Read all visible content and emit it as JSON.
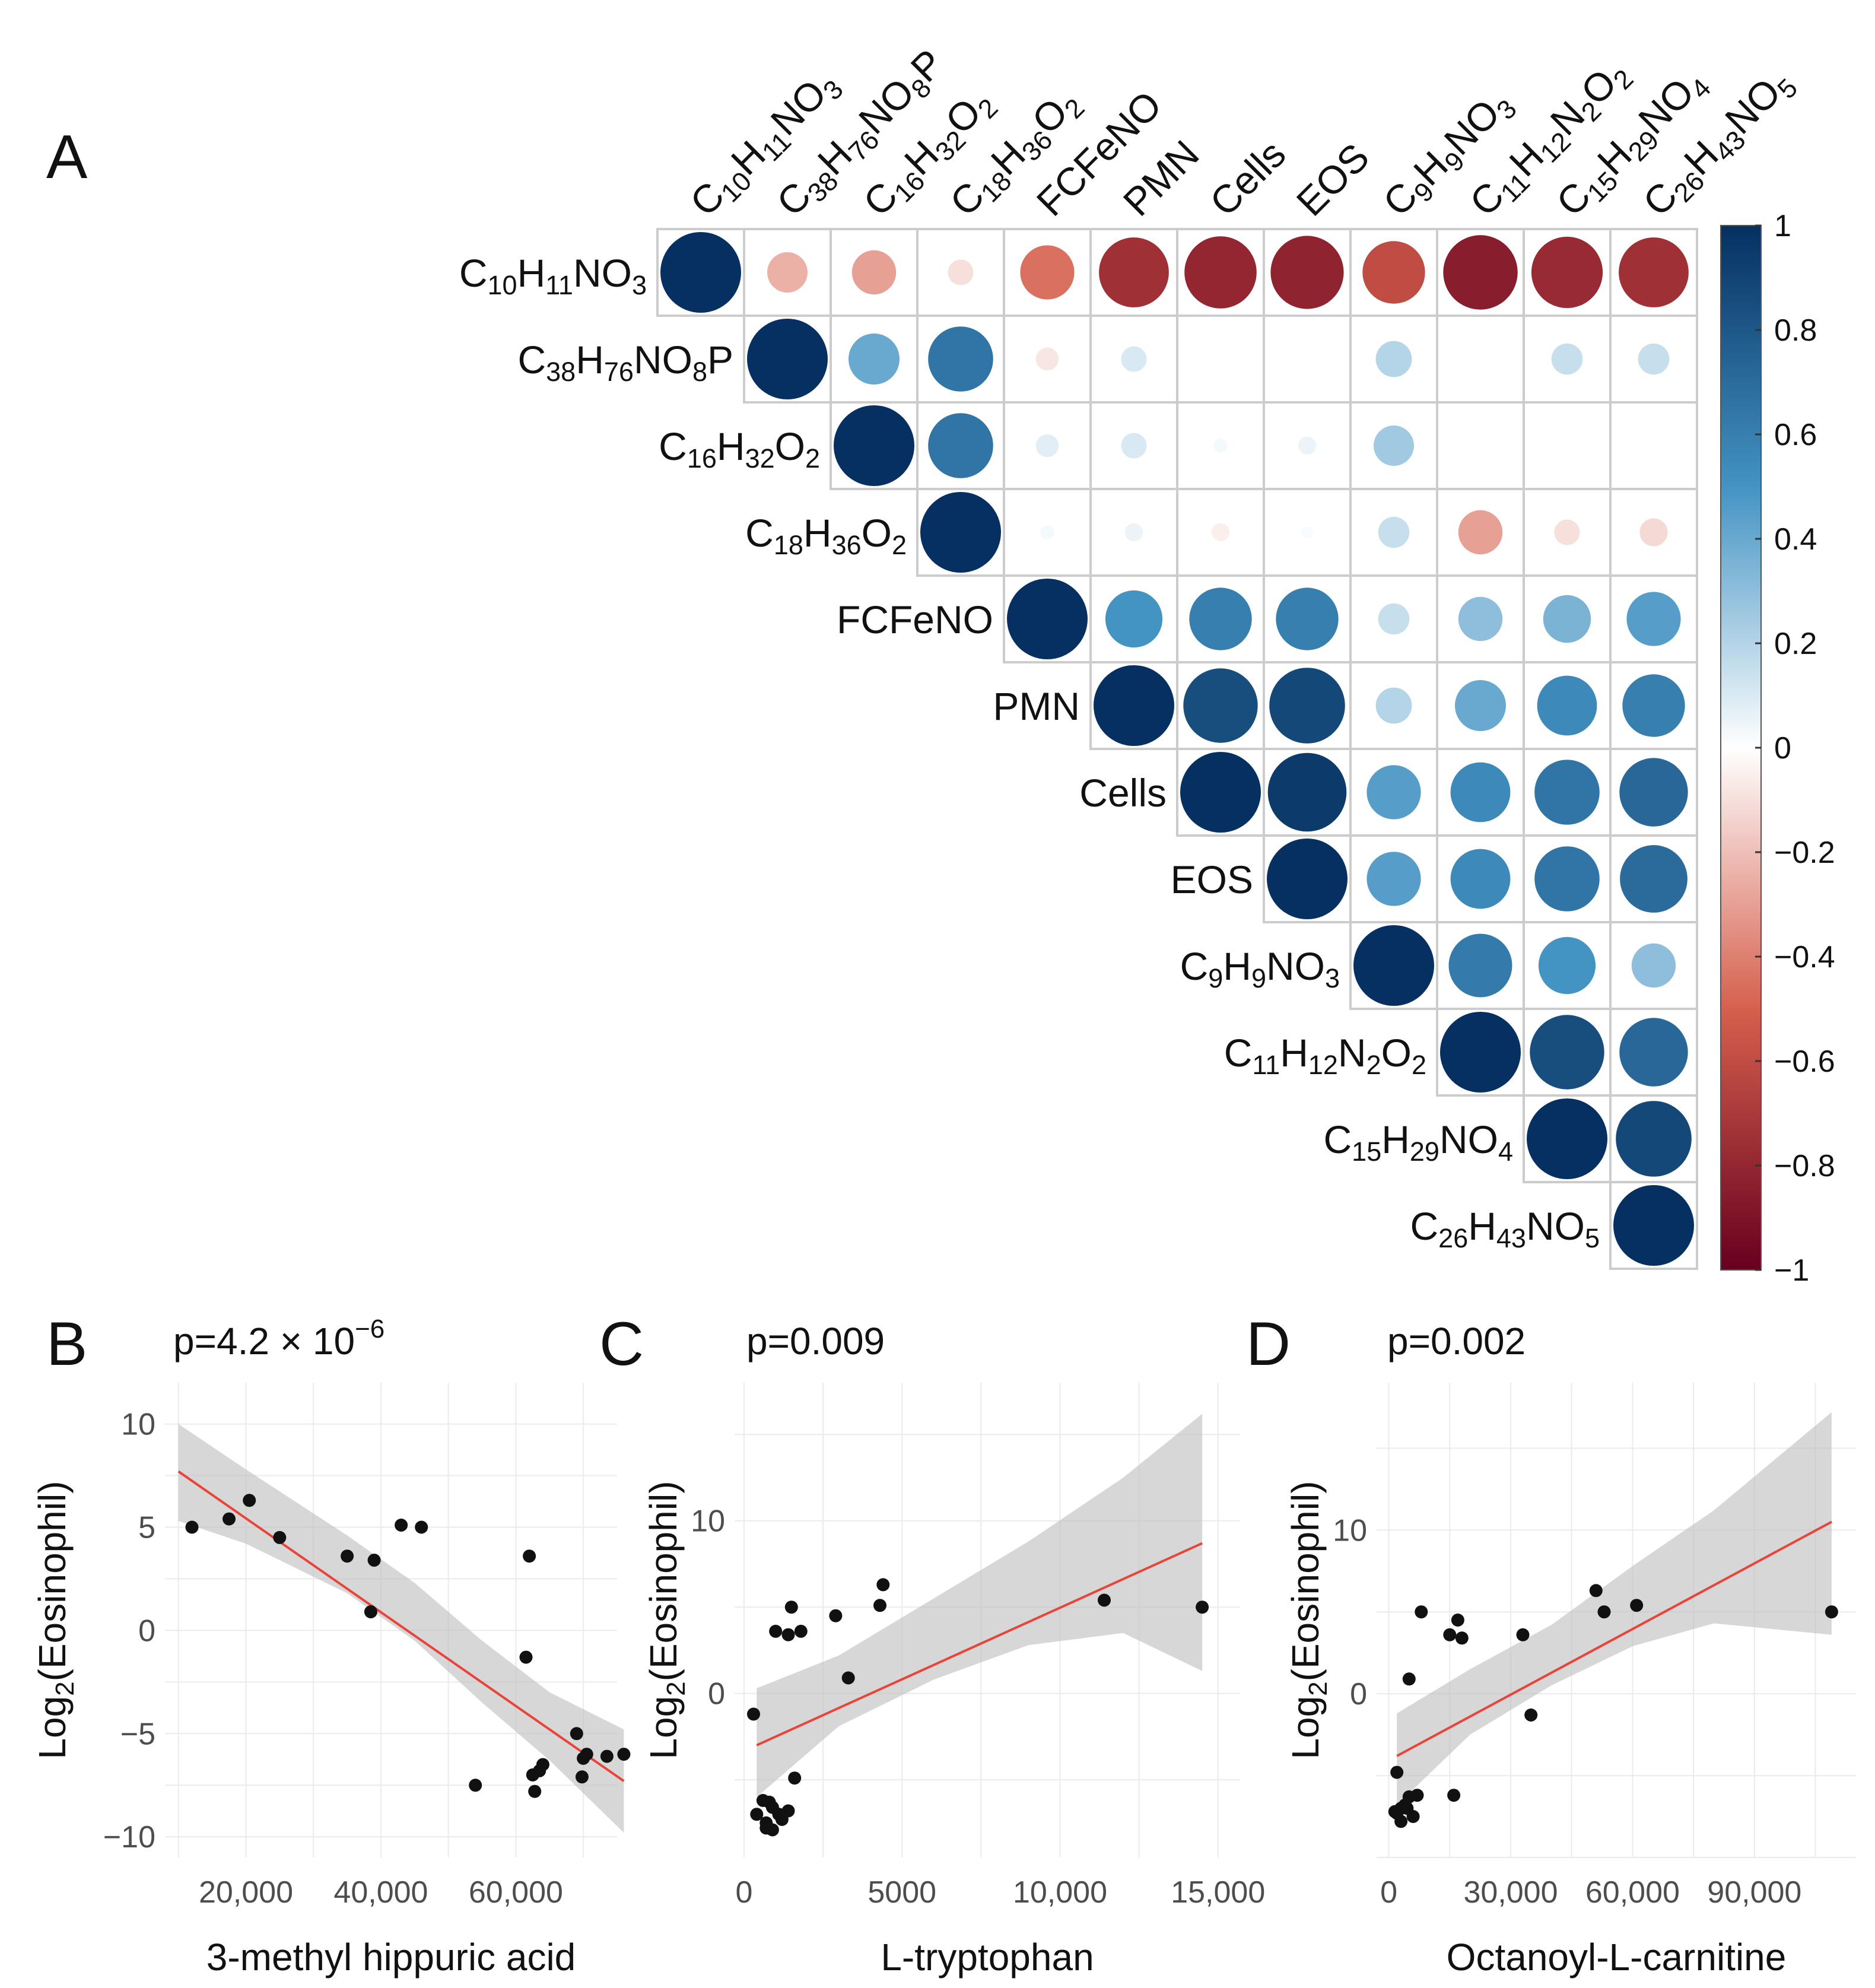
{
  "panels": {
    "a": "A",
    "b": "B",
    "c": "C",
    "d": "D"
  },
  "chart_data": [
    {
      "type": "heatmap",
      "subtype": "correlation-upper-triangle-circles",
      "panel": "A",
      "variables": [
        {
          "base": "C",
          "parts": [
            [
              "10",
              "sub"
            ],
            [
              "H",
              ""
            ],
            [
              "11",
              "sub"
            ],
            [
              "NO",
              ""
            ],
            [
              "3",
              "sub"
            ]
          ],
          "plain": "C10H11NO3"
        },
        {
          "base": "C",
          "parts": [
            [
              "38",
              "sub"
            ],
            [
              "H",
              ""
            ],
            [
              "76",
              "sub"
            ],
            [
              "NO",
              ""
            ],
            [
              "8",
              "sub"
            ],
            [
              "P",
              ""
            ]
          ],
          "plain": "C38H76NO8P"
        },
        {
          "base": "C",
          "parts": [
            [
              "16",
              "sub"
            ],
            [
              "H",
              ""
            ],
            [
              "32",
              "sub"
            ],
            [
              "O",
              ""
            ],
            [
              "2",
              "sub"
            ]
          ],
          "plain": "C16H32O2"
        },
        {
          "base": "C",
          "parts": [
            [
              "18",
              "sub"
            ],
            [
              "H",
              ""
            ],
            [
              "36",
              "sub"
            ],
            [
              "O",
              ""
            ],
            [
              "2",
              "sub"
            ]
          ],
          "plain": "C18H36O2"
        },
        {
          "base": "FCFeNO",
          "parts": [],
          "plain": "FCFeNO"
        },
        {
          "base": "PMN",
          "parts": [],
          "plain": "PMN"
        },
        {
          "base": "Cells",
          "parts": [],
          "plain": "Cells"
        },
        {
          "base": "EOS",
          "parts": [],
          "plain": "EOS"
        },
        {
          "base": "C",
          "parts": [
            [
              "9",
              "sub"
            ],
            [
              "H",
              ""
            ],
            [
              "9",
              "sub"
            ],
            [
              "NO",
              ""
            ],
            [
              "3",
              "sub"
            ]
          ],
          "plain": "C9H9NO3"
        },
        {
          "base": "C",
          "parts": [
            [
              "11",
              "sub"
            ],
            [
              "H",
              ""
            ],
            [
              "12",
              "sub"
            ],
            [
              "N",
              ""
            ],
            [
              "2",
              "sub"
            ],
            [
              "O",
              ""
            ],
            [
              "2",
              "sub"
            ]
          ],
          "plain": "C11H12N2O2"
        },
        {
          "base": "C",
          "parts": [
            [
              "15",
              "sub"
            ],
            [
              "H",
              ""
            ],
            [
              "29",
              "sub"
            ],
            [
              "NO",
              ""
            ],
            [
              "4",
              "sub"
            ]
          ],
          "plain": "C15H29NO4"
        },
        {
          "base": "C",
          "parts": [
            [
              "26",
              "sub"
            ],
            [
              "H",
              ""
            ],
            [
              "43",
              "sub"
            ],
            [
              "NO",
              ""
            ],
            [
              "5",
              "sub"
            ]
          ],
          "plain": "C26H43NO5"
        }
      ],
      "matrix": [
        [
          1,
          -0.25,
          -0.3,
          -0.1,
          -0.45,
          -0.75,
          -0.8,
          -0.82,
          -0.6,
          -0.85,
          -0.78,
          -0.75
        ],
        [
          null,
          1,
          0.4,
          0.65,
          -0.08,
          0.1,
          0.0,
          0.0,
          0.2,
          0.0,
          0.15,
          0.15
        ],
        [
          null,
          null,
          1,
          0.65,
          0.08,
          0.1,
          0.03,
          0.05,
          0.25,
          0.0,
          0.0,
          0.0
        ],
        [
          null,
          null,
          null,
          1,
          0.03,
          0.05,
          -0.05,
          0.02,
          0.15,
          -0.3,
          -0.1,
          -0.12
        ],
        [
          null,
          null,
          null,
          null,
          1,
          0.5,
          0.6,
          0.6,
          0.15,
          0.3,
          0.35,
          0.45
        ],
        [
          null,
          null,
          null,
          null,
          null,
          1,
          0.85,
          0.88,
          0.2,
          0.4,
          0.55,
          0.6
        ],
        [
          null,
          null,
          null,
          null,
          null,
          null,
          1,
          0.95,
          0.45,
          0.55,
          0.65,
          0.72
        ],
        [
          null,
          null,
          null,
          null,
          null,
          null,
          null,
          1,
          0.45,
          0.55,
          0.65,
          0.7
        ],
        [
          null,
          null,
          null,
          null,
          null,
          null,
          null,
          null,
          1,
          0.62,
          0.5,
          0.3
        ],
        [
          null,
          null,
          null,
          null,
          null,
          null,
          null,
          null,
          null,
          1,
          0.85,
          0.72
        ],
        [
          null,
          null,
          null,
          null,
          null,
          null,
          null,
          null,
          null,
          null,
          1,
          0.88
        ],
        [
          null,
          null,
          null,
          null,
          null,
          null,
          null,
          null,
          null,
          null,
          null,
          1
        ]
      ],
      "colorbar": {
        "min": -1,
        "max": 1,
        "ticks": [
          "1",
          "0.8",
          "0.6",
          "0.4",
          "0.2",
          "0",
          "−0.2",
          "−0.4",
          "−0.6",
          "−0.8",
          "−1"
        ]
      },
      "colors": {
        "neg": "#67001f",
        "negmid": "#d6604d",
        "neutral": "#ffffff",
        "posmid": "#4393c3",
        "pos": "#053061"
      }
    },
    {
      "type": "scatter",
      "panel": "B",
      "pvalue": {
        "prefix": "p=4.2 × 10",
        "exp": "−6"
      },
      "xlabel": "3-methyl hippuric acid",
      "ylabel": {
        "pre": "Log",
        "sub": "2",
        "post": "(Eosinophil)"
      },
      "xlim": [
        8000,
        75000
      ],
      "ylim": [
        -11,
        12
      ],
      "xticks": [
        20000,
        40000,
        60000
      ],
      "xtick_labels": [
        "20,000",
        "40,000",
        "60,000"
      ],
      "yticks": [
        -10,
        -5,
        0,
        5,
        10
      ],
      "ytick_labels": [
        "−10",
        "−5",
        "0",
        "5",
        "10"
      ],
      "points": [
        [
          12000,
          5.0
        ],
        [
          17500,
          5.4
        ],
        [
          20500,
          6.3
        ],
        [
          25000,
          4.5
        ],
        [
          35000,
          3.6
        ],
        [
          39000,
          3.4
        ],
        [
          38500,
          0.9
        ],
        [
          43000,
          5.1
        ],
        [
          46000,
          5.0
        ],
        [
          54000,
          -7.5
        ],
        [
          62000,
          3.6
        ],
        [
          61500,
          -1.3
        ],
        [
          62500,
          -7.0
        ],
        [
          63500,
          -6.8
        ],
        [
          64000,
          -6.5
        ],
        [
          62800,
          -7.8
        ],
        [
          69000,
          -5.0
        ],
        [
          70000,
          -6.2
        ],
        [
          70500,
          -6.0
        ],
        [
          69800,
          -7.1
        ],
        [
          73500,
          -6.1
        ],
        [
          76000,
          -6.0
        ]
      ],
      "fit": {
        "x0": 10000,
        "y0": 7.7,
        "x1": 76000,
        "y1": -7.3
      },
      "band": {
        "upper": [
          [
            10000,
            10.0
          ],
          [
            20000,
            7.8
          ],
          [
            35000,
            4.6
          ],
          [
            45000,
            2.3
          ],
          [
            55000,
            -0.5
          ],
          [
            65000,
            -3.0
          ],
          [
            76000,
            -4.8
          ]
        ],
        "lower": [
          [
            10000,
            5.3
          ],
          [
            20000,
            4.2
          ],
          [
            35000,
            1.8
          ],
          [
            45000,
            -0.5
          ],
          [
            55000,
            -3.5
          ],
          [
            65000,
            -6.3
          ],
          [
            76000,
            -9.8
          ]
        ]
      }
    },
    {
      "type": "scatter",
      "panel": "C",
      "pvalue": {
        "prefix": "p=0.009",
        "exp": ""
      },
      "xlabel": "L-tryptophan",
      "ylabel": {
        "pre": "Log",
        "sub": "2",
        "post": "(Eosinophil)"
      },
      "xlim": [
        -300,
        15700
      ],
      "ylim": [
        -9.5,
        18
      ],
      "xticks": [
        0,
        5000,
        10000,
        15000
      ],
      "xtick_labels": [
        "0",
        "5000",
        "10,000",
        "15,000"
      ],
      "yticks": [
        0,
        10
      ],
      "ytick_labels": [
        "0",
        "10"
      ],
      "points": [
        [
          300,
          -1.2
        ],
        [
          1000,
          3.6
        ],
        [
          1400,
          3.4
        ],
        [
          1500,
          5.0
        ],
        [
          1800,
          3.6
        ],
        [
          2900,
          4.5
        ],
        [
          3300,
          0.9
        ],
        [
          4300,
          5.1
        ],
        [
          4400,
          6.3
        ],
        [
          11400,
          5.4
        ],
        [
          14500,
          5.0
        ],
        [
          1600,
          -4.9
        ],
        [
          400,
          -7.0
        ],
        [
          600,
          -6.2
        ],
        [
          800,
          -6.3
        ],
        [
          900,
          -6.6
        ],
        [
          700,
          -7.5
        ],
        [
          1200,
          -7.3
        ],
        [
          1400,
          -6.8
        ],
        [
          900,
          -7.9
        ],
        [
          700,
          -7.8
        ],
        [
          1100,
          -7.0
        ]
      ],
      "fit": {
        "x0": 400,
        "y0": -3.0,
        "x1": 14500,
        "y1": 8.7
      },
      "band": {
        "upper": [
          [
            400,
            0.3
          ],
          [
            3000,
            2.2
          ],
          [
            6000,
            5.5
          ],
          [
            9000,
            8.8
          ],
          [
            12000,
            12.5
          ],
          [
            14500,
            16.2
          ]
        ],
        "lower": [
          [
            400,
            -6.0
          ],
          [
            3000,
            -1.9
          ],
          [
            6000,
            0.8
          ],
          [
            9000,
            2.8
          ],
          [
            12000,
            3.5
          ],
          [
            14500,
            1.3
          ]
        ]
      }
    },
    {
      "type": "scatter",
      "panel": "D",
      "pvalue": {
        "prefix": "p=0.002",
        "exp": ""
      },
      "xlabel": "Octanoyl-L-carnitine",
      "ylabel": {
        "pre": "Log",
        "sub": "2",
        "post": "(Eosinophil)"
      },
      "xlim": [
        -3000,
        115000
      ],
      "ylim": [
        -10,
        19
      ],
      "xticks": [
        0,
        30000,
        60000,
        90000
      ],
      "xtick_labels": [
        "0",
        "30,000",
        "60,000",
        "90,000"
      ],
      "yticks": [
        0,
        10
      ],
      "ytick_labels": [
        "0",
        "10"
      ],
      "points": [
        [
          5000,
          0.9
        ],
        [
          8000,
          5.0
        ],
        [
          15000,
          3.6
        ],
        [
          17000,
          4.5
        ],
        [
          18000,
          3.4
        ],
        [
          33000,
          3.6
        ],
        [
          35000,
          -1.3
        ],
        [
          51000,
          6.3
        ],
        [
          53000,
          5.0
        ],
        [
          61000,
          5.4
        ],
        [
          109000,
          5.0
        ],
        [
          2000,
          -4.8
        ],
        [
          3000,
          -7.0
        ],
        [
          4000,
          -6.8
        ],
        [
          5000,
          -6.3
        ],
        [
          6000,
          -7.5
        ],
        [
          7000,
          -6.2
        ],
        [
          3000,
          -7.8
        ],
        [
          2000,
          -7.3
        ],
        [
          1500,
          -7.2
        ],
        [
          16000,
          -6.2
        ],
        [
          4500,
          -7.0
        ]
      ],
      "fit": {
        "x0": 2000,
        "y0": -3.8,
        "x1": 109000,
        "y1": 10.5
      },
      "band": {
        "upper": [
          [
            2000,
            -1.2
          ],
          [
            20000,
            1.5
          ],
          [
            40000,
            4.2
          ],
          [
            60000,
            7.8
          ],
          [
            80000,
            11.2
          ],
          [
            109000,
            17.2
          ]
        ],
        "lower": [
          [
            2000,
            -6.8
          ],
          [
            20000,
            -2.5
          ],
          [
            40000,
            0.5
          ],
          [
            60000,
            2.9
          ],
          [
            80000,
            4.3
          ],
          [
            109000,
            3.6
          ]
        ]
      }
    }
  ]
}
